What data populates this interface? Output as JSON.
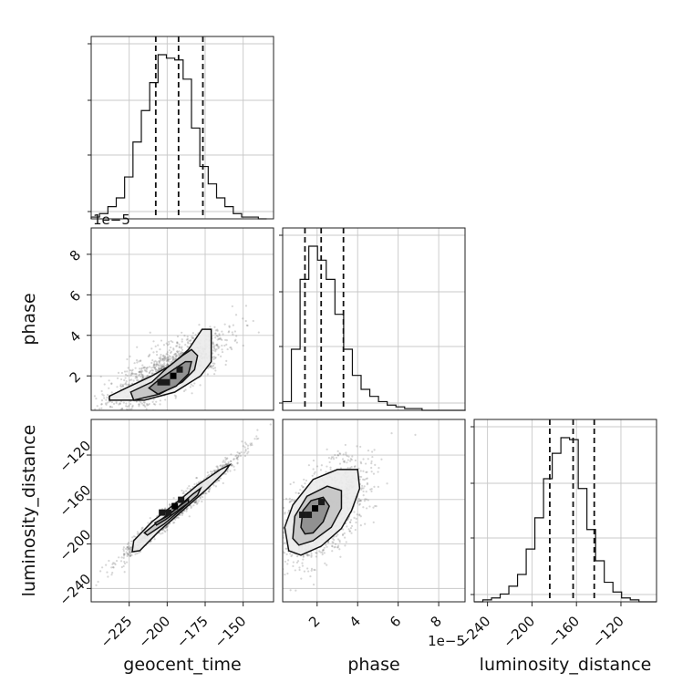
{
  "chart_data": {
    "type": "corner",
    "parameters": [
      {
        "name": "geocent_time",
        "label": "geocent_time",
        "range": [
          -250,
          -130
        ],
        "ticks": [
          -225,
          -200,
          -175,
          -150
        ],
        "tick_labels": [
          "−225",
          "−200",
          "−175",
          "−150"
        ],
        "quantiles": [
          -207.5,
          -192.5,
          -176.5
        ],
        "offset_text": ""
      },
      {
        "name": "phase",
        "label": "phase",
        "range": [
          0.3,
          9.3
        ],
        "ticks": [
          2,
          4,
          6,
          8
        ],
        "tick_labels": [
          "2",
          "4",
          "6",
          "8"
        ],
        "quantiles": [
          1.4,
          2.2,
          3.3
        ],
        "offset_text": "1e−5"
      },
      {
        "name": "luminosity_distance",
        "label": "luminosity_distance",
        "range": [
          -252,
          -88
        ],
        "ticks": [
          -240,
          -200,
          -160,
          -120
        ],
        "tick_labels": [
          "−240",
          "−200",
          "−160",
          "−120"
        ],
        "quantiles": [
          -184,
          -163,
          -144
        ],
        "offset_text": ""
      }
    ],
    "histograms": [
      {
        "param": "geocent_time",
        "bin_edges_start": -250,
        "bin_width": 5.5,
        "counts": [
          1,
          3,
          7,
          12,
          24,
          44,
          62,
          78,
          94,
          92,
          91,
          80,
          52,
          30,
          20,
          12,
          7,
          3,
          1,
          1,
          0
        ]
      },
      {
        "param": "phase",
        "bin_edges_start": 0.3,
        "bin_width": 0.43,
        "counts": [
          5,
          35,
          75,
          94,
          86,
          75,
          55,
          35,
          20,
          12,
          8,
          5,
          3,
          2,
          1,
          1,
          0,
          0,
          0,
          0,
          0
        ]
      },
      {
        "param": "luminosity_distance",
        "bin_edges_start": -252,
        "bin_width": 7.8,
        "counts": [
          0,
          1,
          2,
          4,
          8,
          14,
          27,
          43,
          63,
          76,
          84,
          83,
          58,
          37,
          21,
          10,
          5,
          2,
          1,
          0,
          0
        ]
      }
    ],
    "pairs": [
      {
        "x": "geocent_time",
        "y": "phase",
        "center": [
          -196,
          2.0
        ],
        "contours": [
          [
            [
              -238,
              1.0
            ],
            [
              -227,
              1.4
            ],
            [
              -210,
              2.0
            ],
            [
              -196,
              2.6
            ],
            [
              -186,
              3.3
            ],
            [
              -177,
              4.3
            ],
            [
              -171,
              4.3
            ],
            [
              -171,
              2.7
            ],
            [
              -178,
              2.0
            ],
            [
              -195,
              1.2
            ],
            [
              -215,
              0.8
            ],
            [
              -238,
              0.8
            ]
          ],
          [
            [
              -224,
              1.2
            ],
            [
              -210,
              1.7
            ],
            [
              -200,
              2.4
            ],
            [
              -190,
              3.0
            ],
            [
              -184,
              3.3
            ],
            [
              -180,
              3.0
            ],
            [
              -182,
              2.3
            ],
            [
              -190,
              1.7
            ],
            [
              -205,
              1.1
            ],
            [
              -222,
              0.8
            ]
          ],
          [
            [
              -212,
              1.4
            ],
            [
              -204,
              1.9
            ],
            [
              -196,
              2.3
            ],
            [
              -188,
              2.7
            ],
            [
              -184,
              2.7
            ],
            [
              -186,
              2.1
            ],
            [
              -194,
              1.5
            ],
            [
              -206,
              1.1
            ]
          ]
        ]
      },
      {
        "x": "geocent_time",
        "y": "luminosity_distance",
        "center": [
          -195,
          -166
        ],
        "contours": [
          [
            [
              -223,
              -207
            ],
            [
              -222,
              -197
            ],
            [
              -210,
              -180
            ],
            [
              -195,
              -164
            ],
            [
              -180,
              -147
            ],
            [
              -165,
              -133
            ],
            [
              -159,
              -129
            ],
            [
              -162,
              -135
            ],
            [
              -175,
              -152
            ],
            [
              -190,
              -170
            ],
            [
              -205,
              -188
            ],
            [
              -218,
              -206
            ]
          ],
          [
            [
              -215,
              -190
            ],
            [
              -206,
              -180
            ],
            [
              -194,
              -168
            ],
            [
              -183,
              -155
            ],
            [
              -178,
              -150
            ],
            [
              -180,
              -156
            ],
            [
              -190,
              -168
            ],
            [
              -202,
              -182
            ],
            [
              -213,
              -192
            ]
          ],
          [
            [
              -208,
              -181
            ],
            [
              -200,
              -175
            ],
            [
              -192,
              -166
            ],
            [
              -186,
              -160
            ],
            [
              -186,
              -163
            ],
            [
              -193,
              -170
            ],
            [
              -201,
              -178
            ],
            [
              -207,
              -183
            ]
          ]
        ]
      },
      {
        "x": "phase",
        "y": "luminosity_distance",
        "center": [
          1.9,
          -168
        ],
        "contours": [
          [
            [
              0.6,
              -206
            ],
            [
              0.4,
              -185
            ],
            [
              0.8,
              -165
            ],
            [
              1.8,
              -142
            ],
            [
              3.0,
              -133
            ],
            [
              4.0,
              -133
            ],
            [
              4.1,
              -150
            ],
            [
              3.7,
              -170
            ],
            [
              3.2,
              -186
            ],
            [
              2.2,
              -202
            ],
            [
              1.2,
              -210
            ]
          ],
          [
            [
              0.8,
              -195
            ],
            [
              0.9,
              -175
            ],
            [
              1.5,
              -157
            ],
            [
              2.5,
              -148
            ],
            [
              3.2,
              -152
            ],
            [
              3.2,
              -168
            ],
            [
              2.7,
              -185
            ],
            [
              1.8,
              -197
            ],
            [
              1.1,
              -201
            ]
          ],
          [
            [
              1.2,
              -185
            ],
            [
              1.3,
              -170
            ],
            [
              1.7,
              -161
            ],
            [
              2.3,
              -158
            ],
            [
              2.6,
              -166
            ],
            [
              2.3,
              -180
            ],
            [
              1.8,
              -190
            ],
            [
              1.4,
              -191
            ]
          ]
        ]
      }
    ],
    "grid": true,
    "legend": "none"
  }
}
